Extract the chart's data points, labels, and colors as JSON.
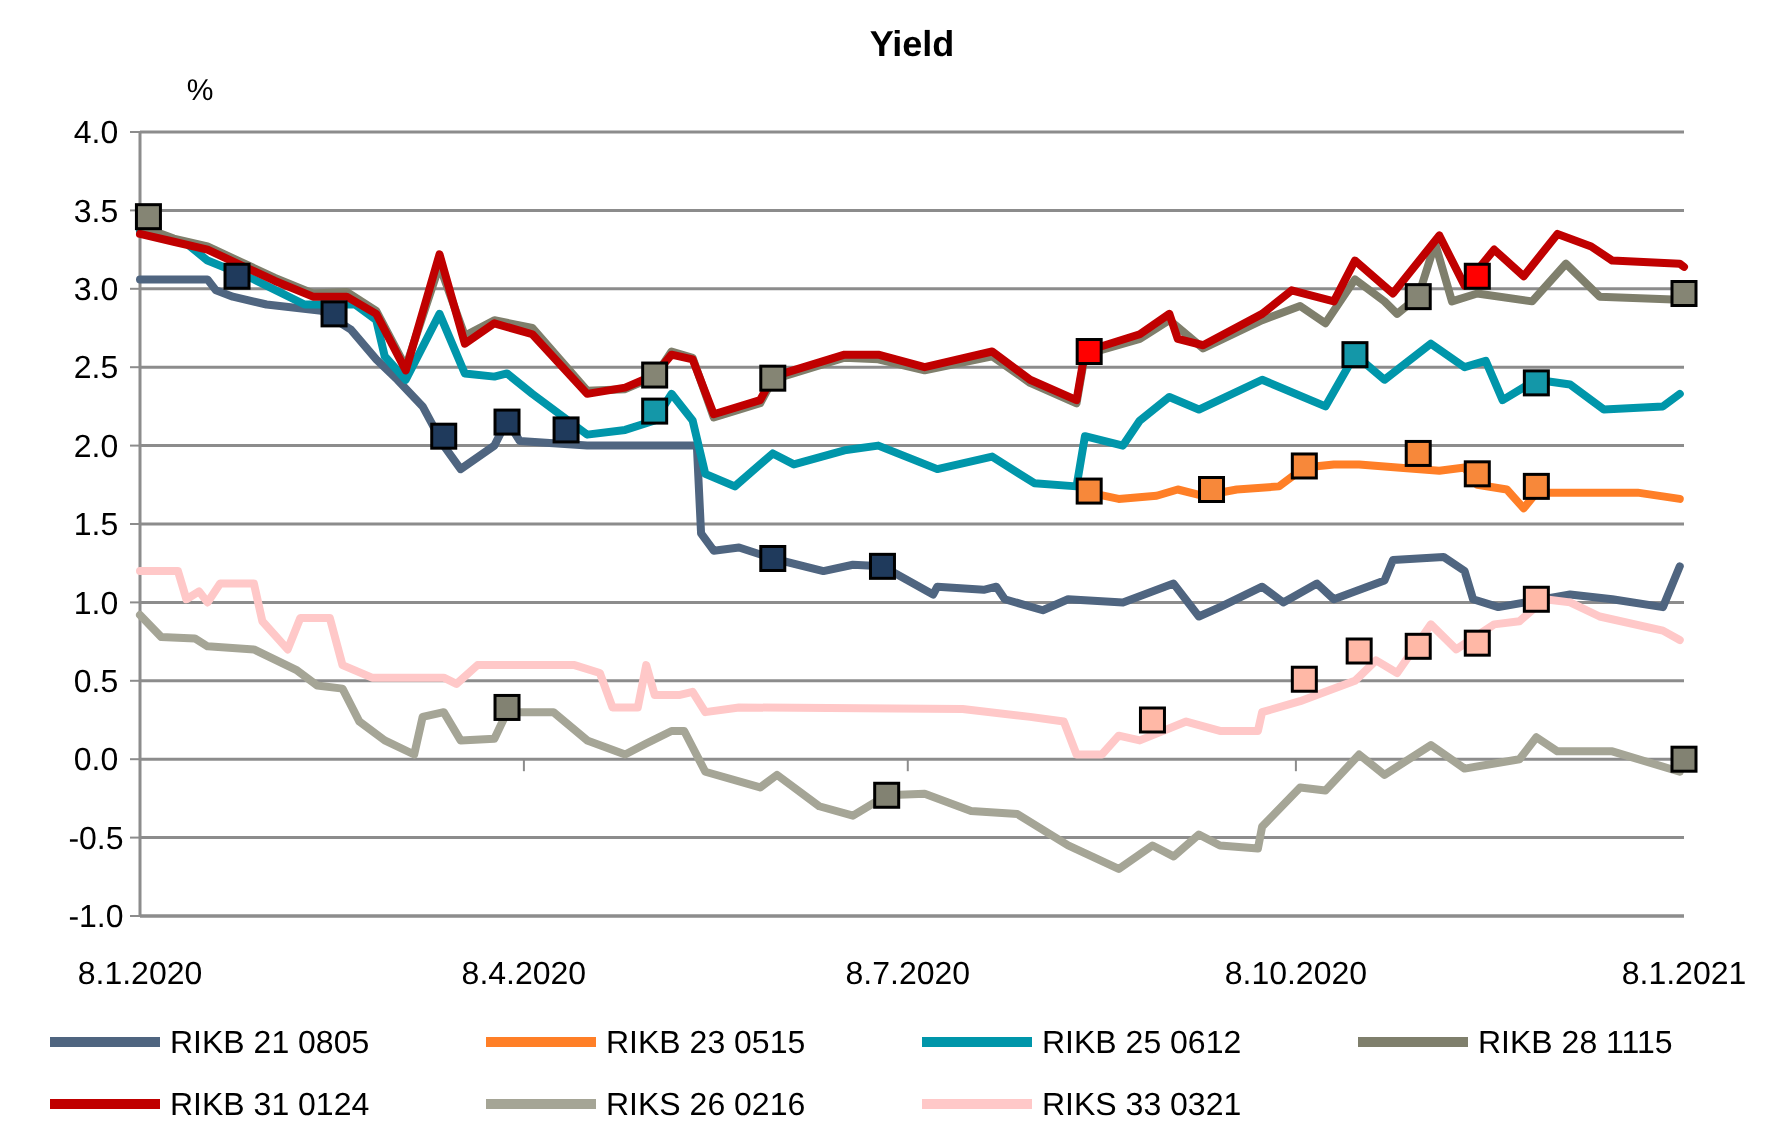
{
  "chart_data": {
    "type": "line",
    "title": "Yield",
    "ylabel": "%",
    "xlim": [
      "2020-01-08",
      "2021-01-08"
    ],
    "xticks": [
      {
        "value": "2020-01-08",
        "label": "8.1.2020"
      },
      {
        "value": "2020-04-08",
        "label": "8.4.2020"
      },
      {
        "value": "2020-07-08",
        "label": "8.7.2020"
      },
      {
        "value": "2020-10-08",
        "label": "8.10.2020"
      },
      {
        "value": "2021-01-08",
        "label": "8.1.2021"
      }
    ],
    "ylim": [
      -1,
      4
    ],
    "yticks": [
      {
        "value": -1,
        "label": "-1.0"
      },
      {
        "value": -0.5,
        "label": "-0.5"
      },
      {
        "value": 0,
        "label": "0.0"
      },
      {
        "value": 0.5,
        "label": "0.5"
      },
      {
        "value": 1,
        "label": "1.0"
      },
      {
        "value": 1.5,
        "label": "1.5"
      },
      {
        "value": 2,
        "label": "2.0"
      },
      {
        "value": 2.5,
        "label": "2.5"
      },
      {
        "value": 3,
        "label": "3.0"
      },
      {
        "value": 3.5,
        "label": "3.5"
      },
      {
        "value": 4,
        "label": "4.0"
      }
    ],
    "grid": "y",
    "legend": "bottom",
    "line_style": "solid",
    "series": [
      {
        "name": "RIKB 21 0805",
        "color": "#4f6580",
        "x": [
          "2020-01-08",
          "2020-01-24",
          "2020-01-26",
          "2020-01-30",
          "2020-02-07",
          "2020-02-20",
          "2020-02-27",
          "2020-03-04",
          "2020-03-09",
          "2020-03-15",
          "2020-03-20",
          "2020-03-24",
          "2020-04-01",
          "2020-04-04",
          "2020-04-07",
          "2020-04-23",
          "2020-05-15",
          "2020-05-19",
          "2020-05-20",
          "2020-05-23",
          "2020-05-29",
          "2020-06-06",
          "2020-06-18",
          "2020-06-25",
          "2020-07-02",
          "2020-07-14",
          "2020-07-15",
          "2020-07-26",
          "2020-07-29",
          "2020-07-31",
          "2020-08-09",
          "2020-08-15",
          "2020-08-28",
          "2020-09-09",
          "2020-09-15",
          "2020-09-20",
          "2020-09-30",
          "2020-10-05",
          "2020-10-13",
          "2020-10-17",
          "2020-10-29",
          "2020-10-31",
          "2020-11-12",
          "2020-11-17",
          "2020-11-19",
          "2020-11-25",
          "2020-12-12",
          "2020-12-22",
          "2021-01-03",
          "2021-01-07"
        ],
        "values": [
          3.06,
          3.06,
          2.99,
          2.95,
          2.9,
          2.86,
          2.74,
          2.55,
          2.42,
          2.25,
          2.0,
          1.85,
          2.0,
          2.16,
          2.03,
          2.0,
          2.0,
          2.0,
          1.44,
          1.33,
          1.35,
          1.28,
          1.2,
          1.24,
          1.23,
          1.05,
          1.1,
          1.08,
          1.1,
          1.02,
          0.95,
          1.02,
          1.0,
          1.12,
          0.91,
          0.97,
          1.1,
          1.0,
          1.12,
          1.02,
          1.14,
          1.27,
          1.29,
          1.2,
          1.02,
          0.97,
          1.05,
          1.02,
          0.97,
          1.23
        ]
      },
      {
        "name": "RIKB 23 0515",
        "color": "#ff7f27",
        "x": [
          "2020-08-20",
          "2020-08-27",
          "2020-09-05",
          "2020-09-10",
          "2020-09-16",
          "2020-09-24",
          "2020-10-04",
          "2020-10-10",
          "2020-10-17",
          "2020-10-23",
          "2020-11-01",
          "2020-11-11",
          "2020-11-17",
          "2020-11-20",
          "2020-11-27",
          "2020-12-01",
          "2020-12-04",
          "2020-12-19",
          "2020-12-28",
          "2021-01-07"
        ],
        "values": [
          1.7,
          1.66,
          1.68,
          1.72,
          1.68,
          1.72,
          1.74,
          1.86,
          1.88,
          1.88,
          1.86,
          1.84,
          1.86,
          1.75,
          1.72,
          1.6,
          1.7,
          1.7,
          1.7,
          1.66
        ]
      },
      {
        "name": "RIKB 25 0612",
        "color": "#0096aa",
        "x": [
          "2020-01-08",
          "2020-01-19",
          "2020-01-24",
          "2020-02-04",
          "2020-02-16",
          "2020-02-28",
          "2020-03-04",
          "2020-03-06",
          "2020-03-11",
          "2020-03-19",
          "2020-03-25",
          "2020-04-01",
          "2020-04-04",
          "2020-04-10",
          "2020-04-23",
          "2020-05-02",
          "2020-05-09",
          "2020-05-13",
          "2020-05-18",
          "2020-05-21",
          "2020-05-28",
          "2020-06-06",
          "2020-06-11",
          "2020-06-23",
          "2020-07-01",
          "2020-07-15",
          "2020-07-28",
          "2020-08-07",
          "2020-08-17",
          "2020-08-19",
          "2020-08-28",
          "2020-09-01",
          "2020-09-08",
          "2020-09-15",
          "2020-09-30",
          "2020-10-15",
          "2020-10-22",
          "2020-10-29",
          "2020-11-09",
          "2020-11-17",
          "2020-11-22",
          "2020-11-26",
          "2020-12-04",
          "2020-12-12",
          "2020-12-20",
          "2021-01-03",
          "2021-01-07"
        ],
        "values": [
          3.37,
          3.29,
          3.18,
          3.06,
          2.9,
          2.9,
          2.8,
          2.57,
          2.42,
          2.84,
          2.46,
          2.44,
          2.46,
          2.33,
          2.07,
          2.1,
          2.16,
          2.33,
          2.16,
          1.82,
          1.74,
          1.95,
          1.88,
          1.97,
          2.0,
          1.85,
          1.93,
          1.76,
          1.74,
          2.06,
          2.0,
          2.16,
          2.31,
          2.23,
          2.42,
          2.25,
          2.58,
          2.42,
          2.65,
          2.5,
          2.54,
          2.29,
          2.42,
          2.39,
          2.23,
          2.25,
          2.33
        ]
      },
      {
        "name": "RIKB 28 1115",
        "color": "#7f7f6c",
        "x": [
          "2020-01-08",
          "2020-01-16",
          "2020-01-24",
          "2020-02-01",
          "2020-02-09",
          "2020-02-18",
          "2020-02-26",
          "2020-03-04",
          "2020-03-11",
          "2020-03-19",
          "2020-03-25",
          "2020-04-01",
          "2020-04-10",
          "2020-04-23",
          "2020-05-02",
          "2020-05-09",
          "2020-05-13",
          "2020-05-18",
          "2020-05-23",
          "2020-06-03",
          "2020-06-06",
          "2020-06-23",
          "2020-07-01",
          "2020-07-12",
          "2020-07-28",
          "2020-08-06",
          "2020-08-17",
          "2020-08-19",
          "2020-09-01",
          "2020-09-08",
          "2020-09-16",
          "2020-09-30",
          "2020-10-09",
          "2020-10-15",
          "2020-10-22",
          "2020-10-29",
          "2020-11-01",
          "2020-11-06",
          "2020-11-10",
          "2020-11-14",
          "2020-11-20",
          "2020-12-03",
          "2020-12-11",
          "2020-12-19",
          "2021-01-07"
        ],
        "values": [
          3.4,
          3.32,
          3.27,
          3.17,
          3.07,
          2.97,
          2.98,
          2.86,
          2.5,
          3.15,
          2.7,
          2.8,
          2.75,
          2.35,
          2.36,
          2.44,
          2.6,
          2.56,
          2.18,
          2.27,
          2.42,
          2.56,
          2.55,
          2.48,
          2.57,
          2.4,
          2.27,
          2.58,
          2.68,
          2.8,
          2.62,
          2.8,
          2.89,
          2.78,
          3.06,
          2.92,
          2.84,
          2.95,
          3.29,
          2.92,
          2.97,
          2.92,
          3.16,
          2.95,
          2.93
        ]
      },
      {
        "name": "RIKB 31 0124",
        "color": "#c00000",
        "x": [
          "2020-01-08",
          "2020-01-16",
          "2020-01-24",
          "2020-02-01",
          "2020-02-09",
          "2020-02-18",
          "2020-02-26",
          "2020-03-04",
          "2020-03-11",
          "2020-03-19",
          "2020-03-25",
          "2020-04-01",
          "2020-04-10",
          "2020-04-23",
          "2020-05-02",
          "2020-05-09",
          "2020-05-13",
          "2020-05-18",
          "2020-05-23",
          "2020-06-03",
          "2020-06-06",
          "2020-06-23",
          "2020-07-01",
          "2020-07-12",
          "2020-07-28",
          "2020-08-06",
          "2020-08-17",
          "2020-08-19",
          "2020-09-01",
          "2020-09-08",
          "2020-09-10",
          "2020-09-16",
          "2020-09-30",
          "2020-10-07",
          "2020-10-17",
          "2020-10-22",
          "2020-10-31",
          "2020-11-11",
          "2020-11-17",
          "2020-11-24",
          "2020-12-01",
          "2020-12-09",
          "2020-12-17",
          "2020-12-22",
          "2021-01-07",
          "2021-01-08"
        ],
        "values": [
          3.35,
          3.3,
          3.25,
          3.15,
          3.05,
          2.95,
          2.95,
          2.84,
          2.48,
          3.22,
          2.65,
          2.78,
          2.71,
          2.33,
          2.37,
          2.45,
          2.58,
          2.55,
          2.2,
          2.29,
          2.44,
          2.58,
          2.58,
          2.5,
          2.6,
          2.42,
          2.29,
          2.6,
          2.71,
          2.84,
          2.68,
          2.64,
          2.84,
          2.99,
          2.92,
          3.18,
          2.97,
          3.34,
          3.02,
          3.25,
          3.08,
          3.35,
          3.27,
          3.18,
          3.16,
          3.14
        ]
      },
      {
        "name": "RIKS 26 0216",
        "color": "#a5a596",
        "x": [
          "2020-01-08",
          "2020-01-13",
          "2020-01-21",
          "2020-01-24",
          "2020-02-04",
          "2020-02-14",
          "2020-02-19",
          "2020-02-25",
          "2020-02-29",
          "2020-03-06",
          "2020-03-13",
          "2020-03-15",
          "2020-03-20",
          "2020-03-24",
          "2020-04-01",
          "2020-04-04",
          "2020-04-15",
          "2020-04-23",
          "2020-05-02",
          "2020-05-07",
          "2020-05-13",
          "2020-05-16",
          "2020-05-21",
          "2020-06-03",
          "2020-06-07",
          "2020-06-17",
          "2020-06-25",
          "2020-07-03",
          "2020-07-12",
          "2020-07-23",
          "2020-08-03",
          "2020-08-15",
          "2020-08-27",
          "2020-09-04",
          "2020-09-09",
          "2020-09-15",
          "2020-09-20",
          "2020-09-29",
          "2020-09-30",
          "2020-10-09",
          "2020-10-15",
          "2020-10-23",
          "2020-10-29",
          "2020-11-09",
          "2020-11-17",
          "2020-11-30",
          "2020-12-04",
          "2020-12-09",
          "2020-12-22",
          "2021-01-07"
        ],
        "values": [
          0.92,
          0.78,
          0.77,
          0.72,
          0.7,
          0.57,
          0.47,
          0.45,
          0.24,
          0.12,
          0.03,
          0.27,
          0.3,
          0.12,
          0.13,
          0.3,
          0.3,
          0.12,
          0.03,
          0.1,
          0.18,
          0.18,
          -0.08,
          -0.18,
          -0.1,
          -0.3,
          -0.36,
          -0.23,
          -0.22,
          -0.33,
          -0.35,
          -0.55,
          -0.7,
          -0.55,
          -0.62,
          -0.48,
          -0.55,
          -0.57,
          -0.43,
          -0.18,
          -0.2,
          0.03,
          -0.1,
          0.09,
          -0.06,
          0.0,
          0.14,
          0.05,
          0.05,
          -0.08
        ]
      },
      {
        "name": "RIKS 33 0321",
        "color": "#ffc8c8",
        "x": [
          "2020-01-08",
          "2020-01-17",
          "2020-01-19",
          "2020-01-22",
          "2020-01-24",
          "2020-01-27",
          "2020-02-04",
          "2020-02-06",
          "2020-02-12",
          "2020-02-15",
          "2020-02-22",
          "2020-02-25",
          "2020-03-03",
          "2020-03-20",
          "2020-03-23",
          "2020-03-28",
          "2020-04-20",
          "2020-04-26",
          "2020-04-29",
          "2020-05-05",
          "2020-05-07",
          "2020-05-09",
          "2020-05-15",
          "2020-05-18",
          "2020-05-21",
          "2020-05-29",
          "2020-07-21",
          "2020-08-06",
          "2020-08-14",
          "2020-08-17",
          "2020-08-23",
          "2020-08-27",
          "2020-09-01",
          "2020-09-12",
          "2020-09-20",
          "2020-09-29",
          "2020-09-30",
          "2020-10-09",
          "2020-10-15",
          "2020-10-22",
          "2020-10-27",
          "2020-11-01",
          "2020-11-09",
          "2020-11-15",
          "2020-11-24",
          "2020-11-30",
          "2020-12-06",
          "2020-12-12",
          "2020-12-19",
          "2021-01-03",
          "2021-01-07"
        ],
        "values": [
          1.2,
          1.2,
          1.02,
          1.07,
          1.0,
          1.12,
          1.12,
          0.88,
          0.7,
          0.9,
          0.9,
          0.6,
          0.52,
          0.52,
          0.48,
          0.6,
          0.6,
          0.55,
          0.33,
          0.33,
          0.6,
          0.41,
          0.41,
          0.43,
          0.3,
          0.33,
          0.32,
          0.27,
          0.24,
          0.03,
          0.03,
          0.15,
          0.12,
          0.24,
          0.18,
          0.18,
          0.3,
          0.37,
          0.43,
          0.5,
          0.63,
          0.55,
          0.86,
          0.7,
          0.86,
          0.88,
          1.02,
          1.0,
          0.91,
          0.82,
          0.76
        ]
      },
      {
        "type": "scatter",
        "marker": "square",
        "color": "#1f3a5c",
        "x": [
          "2020-01-31",
          "2020-02-23",
          "2020-03-20",
          "2020-04-04",
          "2020-04-18",
          "2020-06-06",
          "2020-07-02"
        ],
        "values": [
          3.08,
          2.84,
          2.06,
          2.15,
          2.1,
          1.28,
          1.23
        ]
      },
      {
        "type": "scatter",
        "marker": "square",
        "color": "#f7883a",
        "x": [
          "2020-08-20",
          "2020-09-18",
          "2020-10-10",
          "2020-11-06",
          "2020-11-20",
          "2020-12-04"
        ],
        "values": [
          1.71,
          1.72,
          1.87,
          1.95,
          1.82,
          1.74
        ]
      },
      {
        "type": "scatter",
        "marker": "square",
        "color": "#1497a8",
        "x": [
          "2020-05-09",
          "2020-10-22",
          "2020-12-04"
        ],
        "values": [
          2.22,
          2.58,
          2.4
        ]
      },
      {
        "type": "scatter",
        "marker": "square",
        "color": "#858574",
        "x": [
          "2020-01-10",
          "2020-05-09",
          "2020-06-06",
          "2020-11-06",
          "2021-01-08"
        ],
        "values": [
          3.46,
          2.45,
          2.43,
          2.95,
          2.97
        ]
      },
      {
        "type": "scatter",
        "marker": "square",
        "color": "#ff0000",
        "x": [
          "2020-08-20",
          "2020-11-20"
        ],
        "values": [
          2.6,
          3.08
        ]
      },
      {
        "type": "scatter",
        "marker": "square",
        "color": "#828272",
        "x": [
          "2020-04-04",
          "2020-07-03",
          "2021-01-08"
        ],
        "values": [
          0.33,
          -0.23,
          0.0
        ]
      },
      {
        "type": "scatter",
        "marker": "square",
        "color": "#ffb8a6",
        "x": [
          "2020-09-04",
          "2020-10-10",
          "2020-10-23",
          "2020-11-06",
          "2020-11-20",
          "2020-12-04"
        ],
        "values": [
          0.25,
          0.51,
          0.69,
          0.72,
          0.74,
          1.02
        ]
      }
    ]
  }
}
